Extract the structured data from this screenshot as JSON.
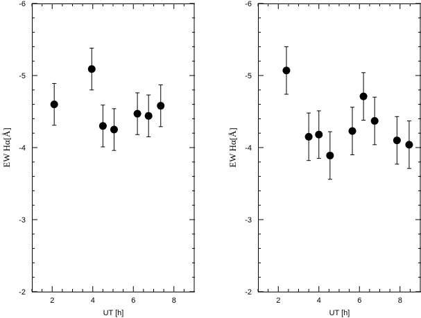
{
  "chart_data": [
    {
      "type": "scatter",
      "xlabel": "UT [h]",
      "ylabel": "EW  Hα[Å]",
      "xlim": [
        1,
        9
      ],
      "ylim": [
        -2,
        -6
      ],
      "y_inverted": true,
      "xticks": [
        2,
        4,
        6,
        8
      ],
      "xtick_labels": [
        "2",
        "4",
        "6",
        "8"
      ],
      "yticks": [
        -6,
        -5,
        -4,
        -3,
        -2
      ],
      "ytick_labels": [
        "-6",
        "-5",
        "-4",
        "-3",
        "-2"
      ],
      "error_bars": true,
      "points": [
        {
          "x": 2.1,
          "y": -4.6,
          "err": 0.29
        },
        {
          "x": 3.95,
          "y": -5.09,
          "err": 0.29
        },
        {
          "x": 4.5,
          "y": -4.3,
          "err": 0.29
        },
        {
          "x": 5.05,
          "y": -4.25,
          "err": 0.29
        },
        {
          "x": 6.2,
          "y": -4.47,
          "err": 0.29
        },
        {
          "x": 6.75,
          "y": -4.44,
          "err": 0.29
        },
        {
          "x": 7.35,
          "y": -4.58,
          "err": 0.29
        }
      ]
    },
    {
      "type": "scatter",
      "xlabel": "UT [h]",
      "ylabel": "EW  Hα[Å]",
      "xlim": [
        1,
        9
      ],
      "ylim": [
        -2,
        -6
      ],
      "y_inverted": true,
      "xticks": [
        2,
        4,
        6,
        8
      ],
      "xtick_labels": [
        "2",
        "4",
        "6",
        "8"
      ],
      "yticks": [
        -6,
        -5,
        -4,
        -3,
        -2
      ],
      "ytick_labels": [
        "-6",
        "-5",
        "-4",
        "-3",
        "-2"
      ],
      "error_bars": true,
      "points": [
        {
          "x": 2.4,
          "y": -5.07,
          "err": 0.33
        },
        {
          "x": 3.5,
          "y": -4.15,
          "err": 0.33
        },
        {
          "x": 4.0,
          "y": -4.18,
          "err": 0.33
        },
        {
          "x": 4.55,
          "y": -3.89,
          "err": 0.33
        },
        {
          "x": 5.65,
          "y": -4.23,
          "err": 0.33
        },
        {
          "x": 6.2,
          "y": -4.71,
          "err": 0.33
        },
        {
          "x": 6.75,
          "y": -4.37,
          "err": 0.33
        },
        {
          "x": 7.85,
          "y": -4.1,
          "err": 0.33
        },
        {
          "x": 8.45,
          "y": -4.04,
          "err": 0.33
        }
      ]
    }
  ]
}
